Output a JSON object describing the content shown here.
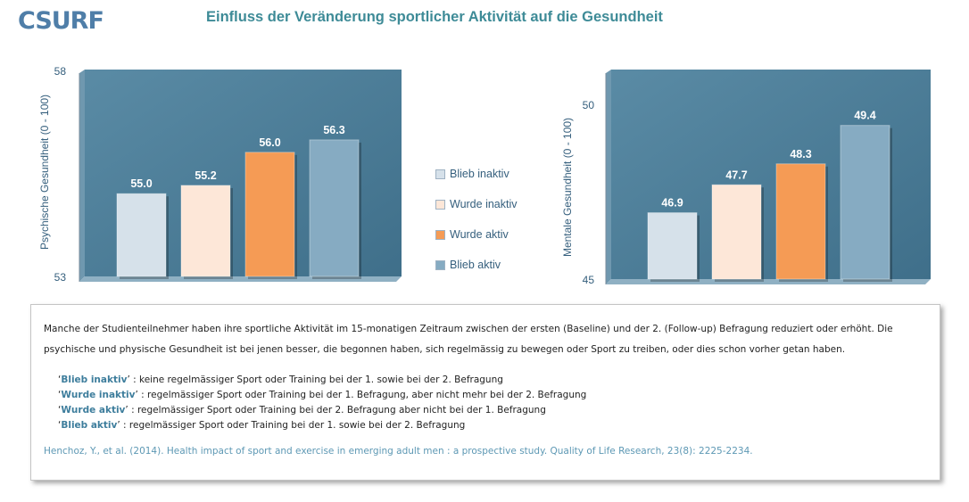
{
  "logo": "CSURF",
  "title": "Einfluss der Veränderung sportlicher Aktivität auf die Gesundheit",
  "colors": {
    "plot_bg": "#4a7e99",
    "blieb_inaktiv": "#d6e1ea",
    "wurde_inaktiv": "#fde7d8",
    "wurde_aktiv": "#f59b55",
    "blieb_aktiv": "#86abc2",
    "axis_text": "#355f7d"
  },
  "chart_data": [
    {
      "type": "bar",
      "ylabel": "Psychische Gesundheit  (0 - 100)",
      "ylim": [
        53,
        58
      ],
      "yticks": [
        "58",
        "53"
      ],
      "categories": [
        "Blieb inaktiv",
        "Wurde inaktiv",
        "Wurde aktiv",
        "Blieb aktiv"
      ],
      "values": [
        55.0,
        55.2,
        56.0,
        56.3
      ],
      "value_labels": [
        "55.0",
        "55.2",
        "56.0",
        "56.3"
      ],
      "grid": false
    },
    {
      "type": "bar",
      "ylabel": "Mentale Gesundheit  (0 - 100)",
      "ylim": [
        45,
        51
      ],
      "yticks": [
        "50",
        "45"
      ],
      "categories": [
        "Blieb inaktiv",
        "Wurde inaktiv",
        "Wurde aktiv",
        "Blieb aktiv"
      ],
      "values": [
        46.9,
        47.7,
        48.3,
        49.4
      ],
      "value_labels": [
        "46.9",
        "47.7",
        "48.3",
        "49.4"
      ],
      "grid": false
    }
  ],
  "legend": {
    "placement": "center",
    "items": [
      "Blieb inaktiv",
      "Wurde inaktiv",
      "Wurde aktiv",
      "Blieb aktiv"
    ]
  },
  "text": {
    "paragraph": "Manche der Studienteilnehmer haben ihre sportliche Aktivität im 15-monatigen Zeitraum zwischen der ersten (Baseline) und der 2. (Follow-up)  Befragung reduziert oder erhöht. Die psychische und physische Gesundheit ist bei jenen besser, die begonnen haben, sich regelmässig zu bewegen oder Sport zu treiben, oder dies schon vorher getan haben.",
    "definitions": [
      {
        "open": "‘",
        "key": "Blieb inaktiv",
        "close": "’ :  keine regelmässiger Sport oder Training bei der 1. sowie bei der 2. Befragung"
      },
      {
        "open": "‘",
        "key": "Wurde inaktiv",
        "close": "’ :  regelmässiger Sport oder Training bei der 1. Befragung, aber nicht mehr bei der 2. Befragung"
      },
      {
        "open": "‘",
        "key": "Wurde aktiv",
        "close": "’ : regelmässiger Sport oder Training bei der 2. Befragung aber nicht bei der 1. Befragung"
      },
      {
        "open": "‘",
        "key": "Blieb aktiv",
        "close": "’ :  regelmässiger Sport oder Training bei der 1. sowie bei der 2. Befragung"
      }
    ],
    "reference": "Henchoz, Y., et al. (2014). Health impact of sport and exercise in emerging adult men : a prospective study. Quality of Life Research, 23(8): 2225-2234."
  }
}
